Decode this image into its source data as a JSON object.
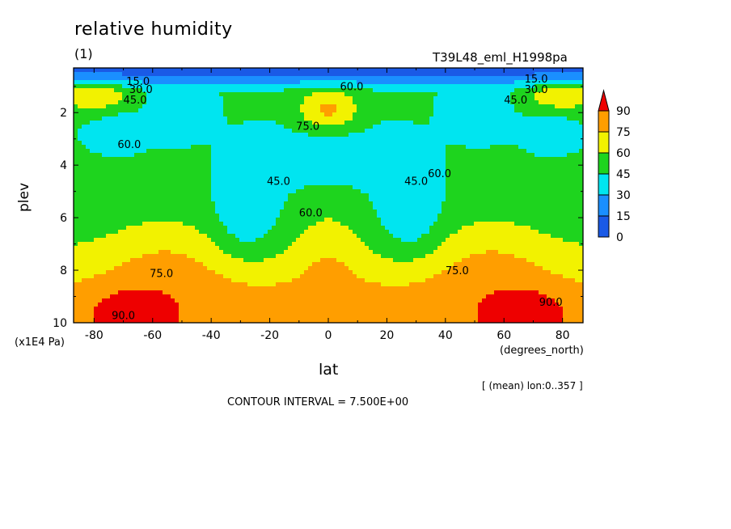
{
  "header": {
    "title": "relative humidity",
    "units": "(1)",
    "experiment": "T39L48_eml_H1998pa"
  },
  "footer": {
    "mean_note": "[ (mean) lon:0..357 ]",
    "contour_interval": "CONTOUR INTERVAL = 7.500E+00"
  },
  "chart_data": {
    "type": "heatmap",
    "title": "relative humidity",
    "xlabel": "lat",
    "x_unit": "(degrees_north)",
    "ylabel": "plev",
    "y_unit": "(x1E4 Pa)",
    "xlim": [
      -87,
      87
    ],
    "ylim": [
      10,
      0.3
    ],
    "y_inverted": true,
    "x_ticks": [
      -80,
      -60,
      -40,
      -20,
      0,
      20,
      40,
      60,
      80
    ],
    "y_ticks": [
      2,
      4,
      6,
      8,
      10
    ],
    "contour_interval": 7.5,
    "colorbar": {
      "levels": [
        "0",
        "15",
        "30",
        "45",
        "60",
        "75",
        "90"
      ],
      "colors": [
        "#1a5ae6",
        "#1a8fff",
        "#00e5f0",
        "#1ed41e",
        "#f2f200",
        "#ff9e00",
        "#ee0000"
      ],
      "extend": "max"
    },
    "contour_labels": [
      {
        "text": "15.0",
        "lat": -65,
        "plev": 0.8
      },
      {
        "text": "30.0",
        "lat": -64,
        "plev": 1.1
      },
      {
        "text": "45.0",
        "lat": -66,
        "plev": 1.5
      },
      {
        "text": "60.0",
        "lat": 8,
        "plev": 1.0
      },
      {
        "text": "75.0",
        "lat": -7,
        "plev": 2.5
      },
      {
        "text": "60.0",
        "lat": -68,
        "plev": 3.2
      },
      {
        "text": "45.0",
        "lat": -17,
        "plev": 4.6
      },
      {
        "text": "60.0",
        "lat": -6,
        "plev": 5.8
      },
      {
        "text": "45.0",
        "lat": 30,
        "plev": 4.6
      },
      {
        "text": "60.0",
        "lat": 38,
        "plev": 4.3
      },
      {
        "text": "75.0",
        "lat": -57,
        "plev": 8.1
      },
      {
        "text": "75.0",
        "lat": 44,
        "plev": 8.0
      },
      {
        "text": "90.0",
        "lat": -70,
        "plev": 9.7
      },
      {
        "text": "90.0",
        "lat": 76,
        "plev": 9.2
      },
      {
        "text": "45.0",
        "lat": 64,
        "plev": 1.5
      },
      {
        "text": "30.0",
        "lat": 71,
        "plev": 1.1
      },
      {
        "text": "15.0",
        "lat": 71,
        "plev": 0.7
      }
    ]
  }
}
